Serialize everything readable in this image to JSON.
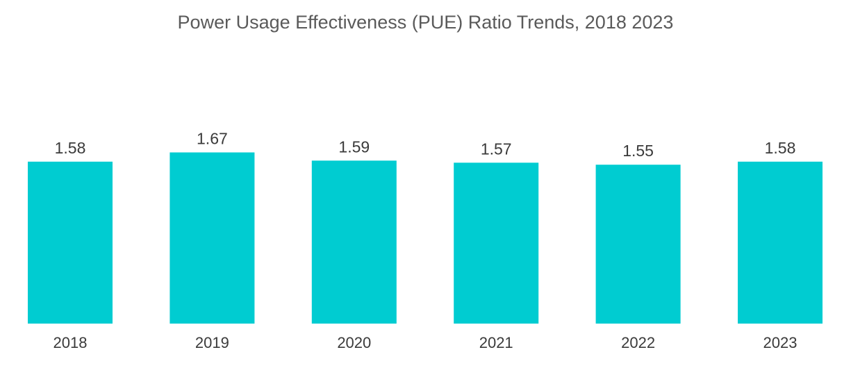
{
  "chart_data": {
    "type": "bar",
    "title": "Power Usage Effectiveness (PUE) Ratio Trends, 2018  2023",
    "categories": [
      "2018",
      "2019",
      "2020",
      "2021",
      "2022",
      "2023"
    ],
    "values": [
      1.58,
      1.67,
      1.59,
      1.57,
      1.55,
      1.58
    ],
    "value_labels": [
      "1.58",
      "1.67",
      "1.59",
      "1.57",
      "1.55",
      "1.58"
    ],
    "xlabel": "",
    "ylabel": "",
    "grid": false,
    "legend": "none",
    "bar_color": "#00ccd1"
  }
}
